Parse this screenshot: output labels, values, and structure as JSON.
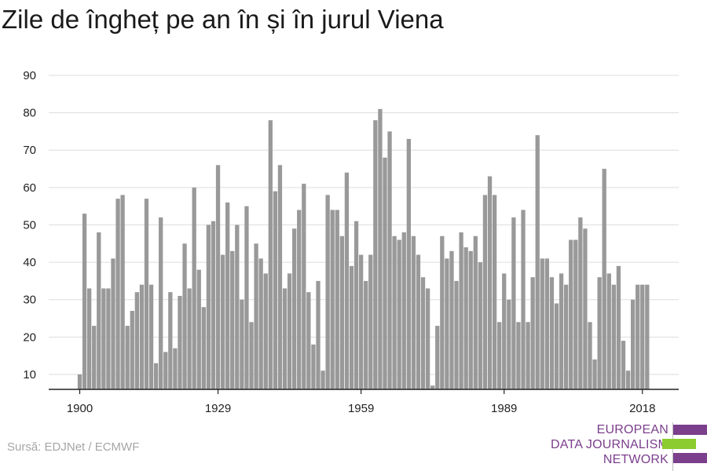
{
  "title": "Zile de îngheț pe an în și în jurul Viena",
  "source": "Sursă: EDJNet / ECMWF",
  "logo": {
    "lines": [
      "EUROPEAN",
      "DATA JOURNALISM",
      "NETWORK"
    ],
    "colors": {
      "text": "#7b3f8c",
      "purple": "#7b3f8c",
      "green": "#8ccc2e"
    }
  },
  "colors": {
    "bar": "#999999",
    "grid": "#dddddd",
    "axis": "#222222",
    "title": "#1a1a1a",
    "source": "#a6a6a6"
  },
  "chart_data": {
    "type": "bar",
    "title": "Zile de îngheț pe an în și în jurul Viena",
    "xlabel": "",
    "ylabel": "",
    "ylim": [
      6,
      91
    ],
    "yticks": [
      10,
      20,
      30,
      40,
      50,
      60,
      70,
      80,
      90
    ],
    "xticks": [
      1900,
      1929,
      1959,
      1989,
      2018
    ],
    "grid": true,
    "legend": "none",
    "x": [
      1900,
      1901,
      1902,
      1903,
      1904,
      1905,
      1906,
      1907,
      1908,
      1909,
      1910,
      1911,
      1912,
      1913,
      1914,
      1915,
      1916,
      1917,
      1918,
      1919,
      1920,
      1921,
      1922,
      1923,
      1924,
      1925,
      1926,
      1927,
      1928,
      1929,
      1930,
      1931,
      1932,
      1933,
      1934,
      1935,
      1936,
      1937,
      1938,
      1939,
      1940,
      1941,
      1942,
      1943,
      1944,
      1945,
      1946,
      1947,
      1948,
      1949,
      1950,
      1951,
      1952,
      1953,
      1954,
      1955,
      1956,
      1957,
      1958,
      1959,
      1960,
      1961,
      1962,
      1963,
      1964,
      1965,
      1966,
      1967,
      1968,
      1969,
      1970,
      1971,
      1972,
      1973,
      1974,
      1975,
      1976,
      1977,
      1978,
      1979,
      1980,
      1981,
      1982,
      1983,
      1984,
      1985,
      1986,
      1987,
      1988,
      1989,
      1990,
      1991,
      1992,
      1993,
      1994,
      1995,
      1996,
      1997,
      1998,
      1999,
      2000,
      2001,
      2002,
      2003,
      2004,
      2005,
      2006,
      2007,
      2008,
      2009,
      2010,
      2011,
      2012,
      2013,
      2014,
      2015,
      2016,
      2017,
      2018,
      2019
    ],
    "values": [
      10,
      53,
      33,
      23,
      48,
      33,
      33,
      41,
      57,
      58,
      23,
      27,
      32,
      34,
      57,
      34,
      13,
      52,
      16,
      32,
      17,
      31,
      45,
      33,
      60,
      38,
      28,
      50,
      51,
      66,
      42,
      56,
      43,
      50,
      30,
      55,
      24,
      45,
      41,
      37,
      78,
      59,
      66,
      33,
      37,
      49,
      54,
      61,
      32,
      18,
      35,
      11,
      58,
      54,
      54,
      47,
      64,
      39,
      51,
      42,
      35,
      42,
      78,
      81,
      68,
      75,
      47,
      46,
      48,
      73,
      47,
      42,
      36,
      33,
      7,
      23,
      47,
      41,
      43,
      35,
      48,
      44,
      43,
      47,
      40,
      58,
      63,
      58,
      24,
      37,
      30,
      52,
      24,
      54,
      24,
      36,
      74,
      41,
      41,
      36,
      29,
      37,
      34,
      46,
      46,
      52,
      49,
      24,
      14,
      36,
      65,
      37,
      34,
      39,
      19,
      11,
      30,
      34,
      34,
      34
    ]
  }
}
